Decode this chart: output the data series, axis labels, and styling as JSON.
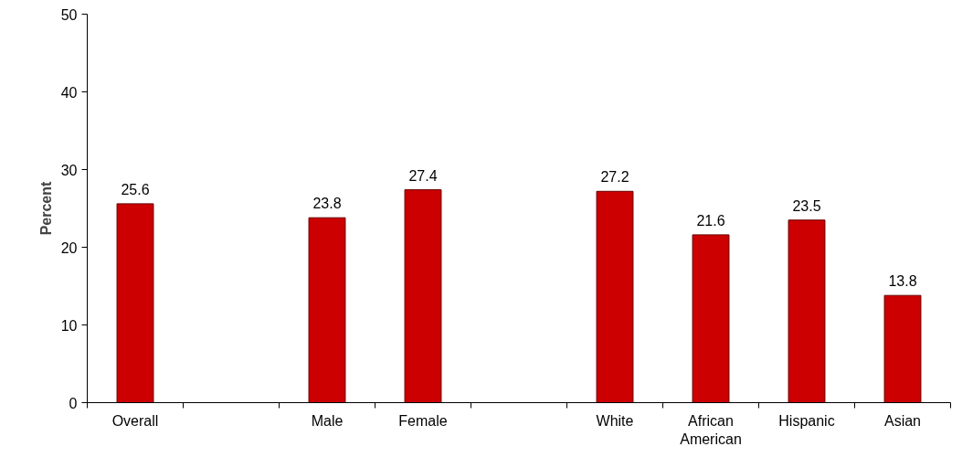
{
  "chart_data": {
    "type": "bar",
    "ylabel": "Percent",
    "categories": [
      "Overall",
      null,
      "Male",
      "Female",
      null,
      "White",
      "African American",
      "Hispanic",
      "Asian"
    ],
    "values": [
      25.6,
      null,
      23.8,
      27.4,
      null,
      27.2,
      21.6,
      23.5,
      13.8
    ],
    "color": "#cc0000",
    "ylim": [
      0,
      50
    ],
    "yticks": [
      0,
      10,
      20,
      30,
      40,
      50
    ],
    "data_labels": true,
    "grid": false
  }
}
